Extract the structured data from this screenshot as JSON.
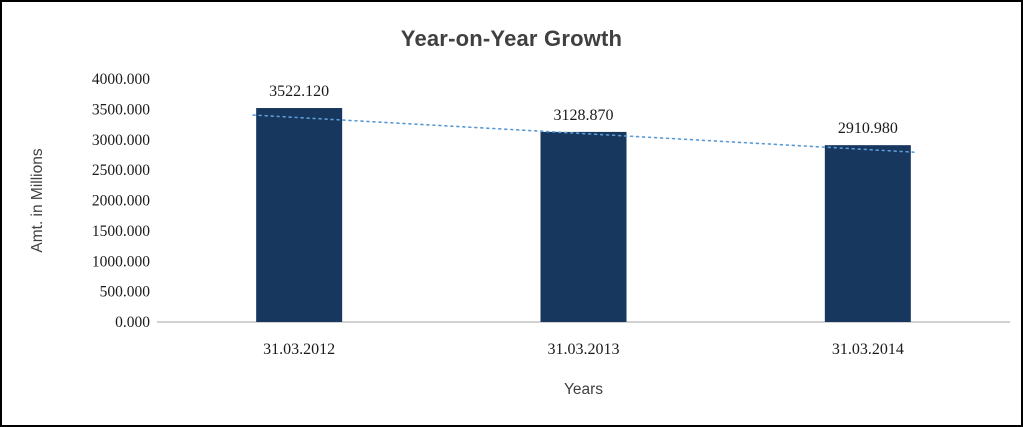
{
  "chart_data": {
    "type": "bar",
    "title": "Year-on-Year Growth",
    "categories": [
      "31.03.2012",
      "31.03.2013",
      "31.03.2014"
    ],
    "values": [
      3522.12,
      3128.87,
      2910.98
    ],
    "value_labels": [
      "3522.120",
      "3128.870",
      "2910.980"
    ],
    "xlabel": "Years",
    "ylabel": "Amt. in Millions",
    "ylim": [
      0,
      4000
    ],
    "ytick_step": 500,
    "ytick_labels": [
      "0.000",
      "500.000",
      "1000.000",
      "1500.000",
      "2000.000",
      "2500.000",
      "3000.000",
      "3500.000",
      "4000.000"
    ],
    "grid": false,
    "legend": "none",
    "bar_color": "#17375E",
    "trendline_color": "#5B9BD5",
    "axis_line_color": "#A6A6A6",
    "label_color": "#1a1a1a",
    "axis_title_color": "#404040"
  }
}
